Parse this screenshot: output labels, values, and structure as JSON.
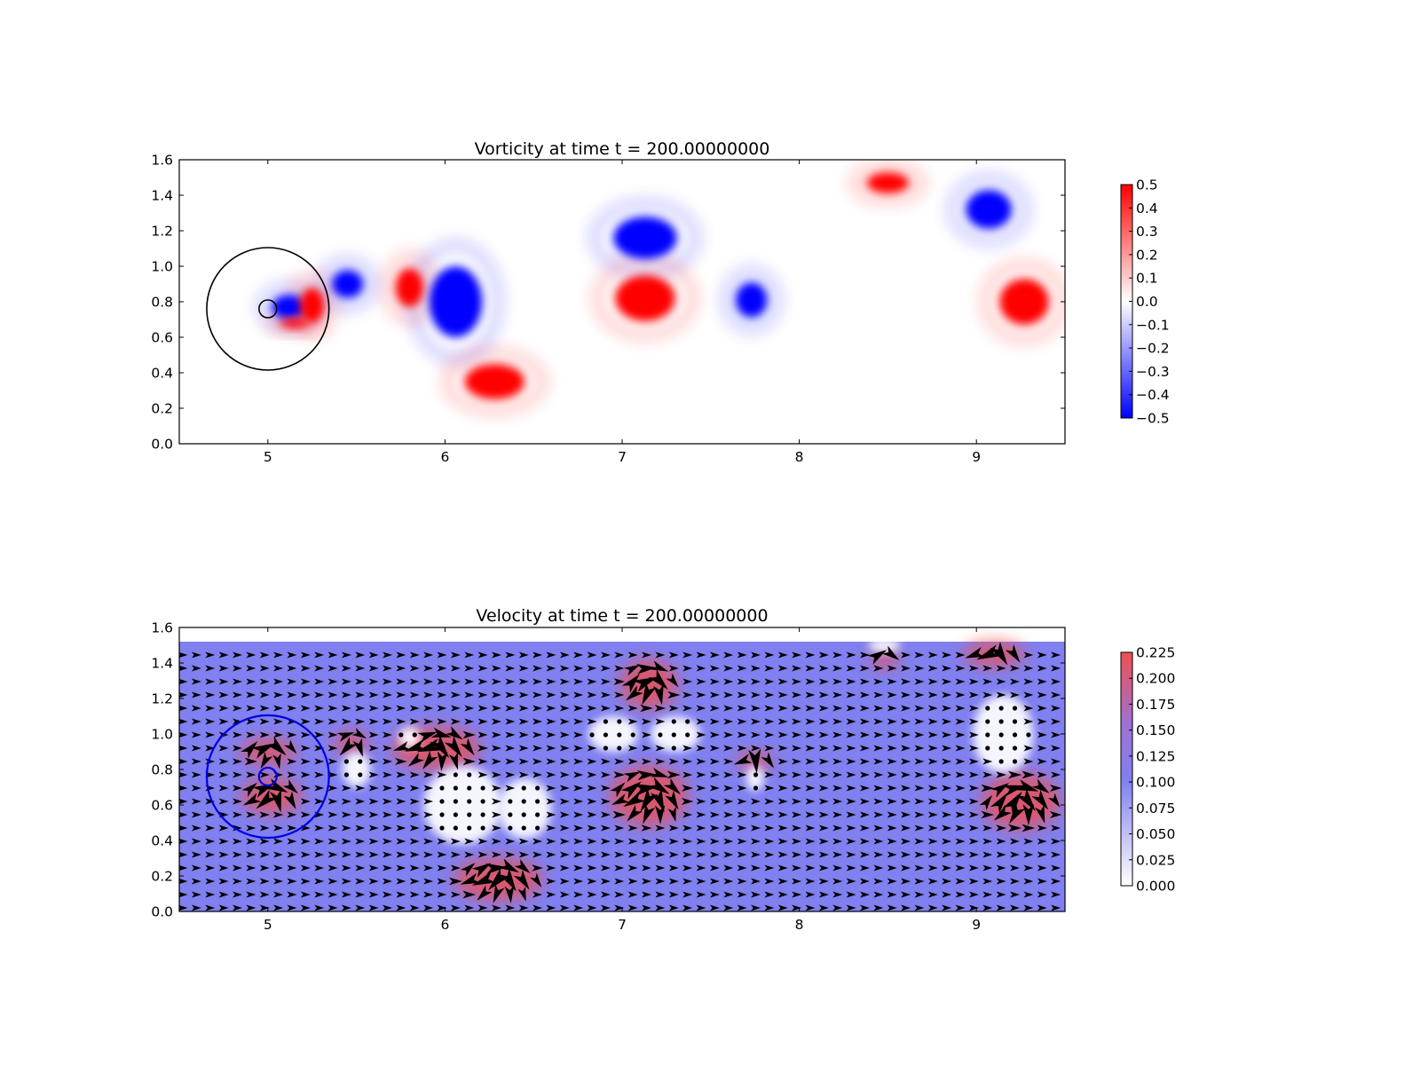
{
  "figure": {
    "background": "#ffffff"
  },
  "colors": {
    "vort_pos": "#ff0000",
    "vort_neg": "#0000ff",
    "vel_low": "#ffffff",
    "vel_mid": "#8080f0",
    "vel_high": "#f05050",
    "arrow": "#000000",
    "obstacle_top": "#000000",
    "obstacle_bottom": "#0000dd"
  },
  "chart_data": [
    {
      "type": "heatmap",
      "title": "Vorticity at time t =   200.00000000",
      "xlabel": "",
      "ylabel": "",
      "xlim": [
        4.5,
        9.5
      ],
      "ylim": [
        0.0,
        1.6
      ],
      "xticks": [
        "5",
        "6",
        "7",
        "8",
        "9"
      ],
      "yticks": [
        "0.0",
        "0.2",
        "0.4",
        "0.6",
        "0.8",
        "1.0",
        "1.2",
        "1.4",
        "1.6"
      ],
      "colorbar": {
        "range": [
          -0.5,
          0.5
        ],
        "ticks": [
          "0.5",
          "0.4",
          "0.3",
          "0.2",
          "0.1",
          "0.0",
          "−0.1",
          "−0.2",
          "−0.3",
          "−0.4",
          "−0.5"
        ]
      },
      "grid": false,
      "circles": [
        {
          "cx": 5.0,
          "cy": 0.76,
          "r": 0.345,
          "name": "outer-circle"
        },
        {
          "cx": 5.0,
          "cy": 0.76,
          "r": 0.05,
          "name": "inner-circle"
        }
      ],
      "vortices": [
        {
          "x": 5.12,
          "y": 0.77,
          "rx": 0.1,
          "ry": 0.07,
          "value": -0.5
        },
        {
          "x": 5.25,
          "y": 0.78,
          "rx": 0.07,
          "ry": 0.1,
          "value": 0.5
        },
        {
          "x": 5.15,
          "y": 0.68,
          "rx": 0.08,
          "ry": 0.03,
          "value": 0.45
        },
        {
          "x": 5.45,
          "y": 0.9,
          "rx": 0.09,
          "ry": 0.08,
          "value": -0.5
        },
        {
          "x": 5.8,
          "y": 0.88,
          "rx": 0.08,
          "ry": 0.11,
          "value": 0.5
        },
        {
          "x": 6.06,
          "y": 0.8,
          "rx": 0.15,
          "ry": 0.2,
          "value": -0.5
        },
        {
          "x": 6.28,
          "y": 0.35,
          "rx": 0.17,
          "ry": 0.1,
          "value": 0.5
        },
        {
          "x": 7.13,
          "y": 1.16,
          "rx": 0.18,
          "ry": 0.12,
          "value": -0.5
        },
        {
          "x": 7.13,
          "y": 0.82,
          "rx": 0.17,
          "ry": 0.13,
          "value": 0.5
        },
        {
          "x": 7.73,
          "y": 0.81,
          "rx": 0.09,
          "ry": 0.1,
          "value": -0.5
        },
        {
          "x": 8.5,
          "y": 1.47,
          "rx": 0.12,
          "ry": 0.06,
          "value": 0.5
        },
        {
          "x": 9.07,
          "y": 1.32,
          "rx": 0.13,
          "ry": 0.11,
          "value": -0.5
        },
        {
          "x": 9.27,
          "y": 0.8,
          "rx": 0.14,
          "ry": 0.13,
          "value": 0.5
        }
      ]
    },
    {
      "type": "heatmap",
      "title": "Velocity at time t =   200.00000000",
      "xlabel": "",
      "ylabel": "",
      "xlim": [
        4.5,
        9.5
      ],
      "ylim": [
        0.0,
        1.6
      ],
      "xticks": [
        "5",
        "6",
        "7",
        "8",
        "9"
      ],
      "yticks": [
        "0.0",
        "0.2",
        "0.4",
        "0.6",
        "0.8",
        "1.0",
        "1.2",
        "1.4",
        "1.6"
      ],
      "colorbar": {
        "range": [
          0.0,
          0.225
        ],
        "ticks": [
          "0.225",
          "0.200",
          "0.175",
          "0.150",
          "0.125",
          "0.100",
          "0.075",
          "0.050",
          "0.025",
          "0.000"
        ]
      },
      "grid": false,
      "field_top": 1.52,
      "background_speed": 0.1,
      "quiver": {
        "type": "quiver",
        "arrow_color": "#000000"
      },
      "circles": [
        {
          "cx": 5.0,
          "cy": 0.76,
          "r": 0.345,
          "name": "outer-circle"
        },
        {
          "cx": 5.0,
          "cy": 0.76,
          "r": 0.05,
          "name": "inner-circle"
        }
      ],
      "slow_regions": [
        {
          "x": 5.5,
          "y": 0.8,
          "rx": 0.08,
          "ry": 0.1
        },
        {
          "x": 6.1,
          "y": 0.6,
          "rx": 0.22,
          "ry": 0.22
        },
        {
          "x": 6.45,
          "y": 0.58,
          "rx": 0.15,
          "ry": 0.17
        },
        {
          "x": 5.8,
          "y": 0.98,
          "rx": 0.06,
          "ry": 0.06
        },
        {
          "x": 6.95,
          "y": 1.0,
          "rx": 0.14,
          "ry": 0.1
        },
        {
          "x": 7.3,
          "y": 1.0,
          "rx": 0.14,
          "ry": 0.1
        },
        {
          "x": 7.75,
          "y": 0.75,
          "rx": 0.05,
          "ry": 0.07
        },
        {
          "x": 9.15,
          "y": 1.0,
          "rx": 0.17,
          "ry": 0.22
        },
        {
          "x": 8.48,
          "y": 1.5,
          "rx": 0.09,
          "ry": 0.04
        }
      ],
      "fast_regions": [
        {
          "x": 5.02,
          "y": 0.65,
          "rx": 0.17,
          "ry": 0.1
        },
        {
          "x": 5.0,
          "y": 0.9,
          "rx": 0.16,
          "ry": 0.07
        },
        {
          "x": 5.47,
          "y": 0.95,
          "rx": 0.1,
          "ry": 0.06
        },
        {
          "x": 5.95,
          "y": 0.92,
          "rx": 0.25,
          "ry": 0.12
        },
        {
          "x": 6.3,
          "y": 0.18,
          "rx": 0.25,
          "ry": 0.12
        },
        {
          "x": 7.15,
          "y": 1.28,
          "rx": 0.16,
          "ry": 0.14
        },
        {
          "x": 7.15,
          "y": 0.65,
          "rx": 0.22,
          "ry": 0.17
        },
        {
          "x": 7.75,
          "y": 0.85,
          "rx": 0.1,
          "ry": 0.05
        },
        {
          "x": 8.48,
          "y": 1.42,
          "rx": 0.08,
          "ry": 0.05
        },
        {
          "x": 9.1,
          "y": 1.45,
          "rx": 0.17,
          "ry": 0.07
        },
        {
          "x": 9.25,
          "y": 0.62,
          "rx": 0.22,
          "ry": 0.16
        }
      ]
    }
  ]
}
